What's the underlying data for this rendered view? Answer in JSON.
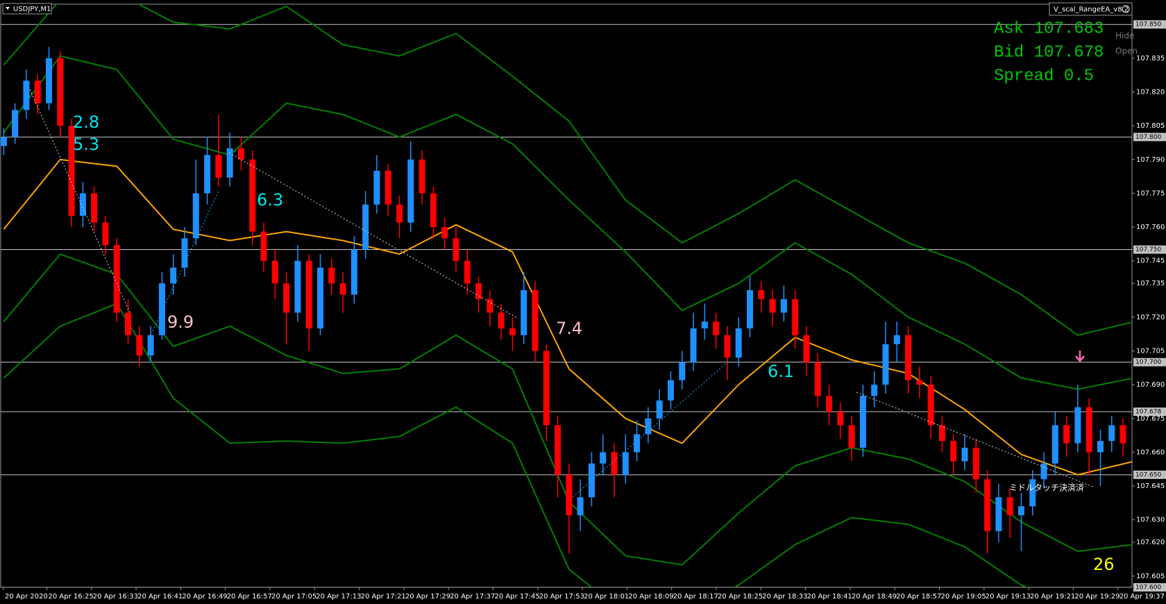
{
  "header": {
    "symbol": "USDJPY,M1",
    "ea": "V_scal_RangeEA_v8.2",
    "buttons": [
      "Hide",
      "Open"
    ]
  },
  "info": {
    "ask": "Ask 107.683",
    "bid": "Bid 107.678",
    "spread": "Spread 0.5"
  },
  "chart_data": {
    "type": "candlestick",
    "up_color": "#1e90ff",
    "down_color": "#ff0000",
    "ylim": [
      107.6,
      107.859
    ],
    "yticks": [
      107.835,
      {
        "value": 107.82,
        "label": "107.820"
      },
      107.805,
      {
        "value": 107.79,
        "label": "107.790"
      },
      107.775,
      {
        "value": 107.76,
        "label": "107.760"
      },
      107.745,
      107.735,
      {
        "value": 107.72,
        "label": "107.720"
      },
      107.705,
      {
        "value": 107.69,
        "label": "107.690"
      },
      107.675,
      {
        "value": 107.66,
        "label": "107.660"
      },
      107.645,
      {
        "value": 107.63,
        "label": "107.630"
      },
      {
        "value": 107.62,
        "label": "107.620"
      },
      107.605
    ],
    "levels": [
      {
        "value": 107.85,
        "label": "107.850"
      },
      {
        "value": 107.8,
        "label": "107.800"
      },
      {
        "value": 107.75,
        "label": "107.750"
      },
      {
        "value": 107.7,
        "label": "107.700"
      },
      107.678,
      {
        "value": 107.65,
        "label": "107.650"
      },
      {
        "value": 107.6,
        "label": "107.600"
      }
    ],
    "xticks": [
      "20 Apr 2020",
      "20 Apr 16:25",
      "20 Apr 16:33",
      "20 Apr 16:41",
      "20 Apr 16:49",
      "20 Apr 16:57",
      "20 Apr 17:05",
      "20 Apr 17:13",
      "20 Apr 17:21",
      "20 Apr 17:29",
      "20 Apr 17:37",
      "20 Apr 17:45",
      "20 Apr 17:53",
      "20 Apr 18:01",
      "20 Apr 18:09",
      "20 Apr 18:17",
      "20 Apr 18:25",
      "20 Apr 18:33",
      "20 Apr 18:41",
      "20 Apr 18:49",
      "20 Apr 18:57",
      "20 Apr 19:05",
      "20 Apr 19:13",
      "20 Apr 19:21",
      "20 Apr 19:29",
      "20 Apr 19:37"
    ],
    "ohlc": [
      [
        107.796,
        107.804,
        107.792,
        107.8
      ],
      [
        107.8,
        107.815,
        107.797,
        107.812
      ],
      [
        107.812,
        107.83,
        107.808,
        107.825
      ],
      [
        107.825,
        107.828,
        107.81,
        107.815
      ],
      [
        107.815,
        107.84,
        107.812,
        107.835
      ],
      [
        107.835,
        107.838,
        107.8,
        107.805
      ],
      [
        107.805,
        107.808,
        107.76,
        107.765
      ],
      [
        107.765,
        107.78,
        107.76,
        107.775
      ],
      [
        107.775,
        107.778,
        107.758,
        107.762
      ],
      [
        107.762,
        107.765,
        107.748,
        107.752
      ],
      [
        107.752,
        107.755,
        107.718,
        107.722
      ],
      [
        107.722,
        107.728,
        107.708,
        107.712
      ],
      [
        107.712,
        107.716,
        107.698,
        107.703
      ],
      [
        107.703,
        107.716,
        107.7,
        107.712
      ],
      [
        107.712,
        107.74,
        107.71,
        107.735
      ],
      [
        107.735,
        107.748,
        107.73,
        107.742
      ],
      [
        107.742,
        107.76,
        107.738,
        107.755
      ],
      [
        107.755,
        107.79,
        107.752,
        107.775
      ],
      [
        107.775,
        107.8,
        107.77,
        107.792
      ],
      [
        107.792,
        107.81,
        107.778,
        107.782
      ],
      [
        107.782,
        107.802,
        107.778,
        107.795
      ],
      [
        107.795,
        107.8,
        107.785,
        107.79
      ],
      [
        107.79,
        107.794,
        107.752,
        107.758
      ],
      [
        107.758,
        107.762,
        107.74,
        107.745
      ],
      [
        107.745,
        107.75,
        107.728,
        107.735
      ],
      [
        107.735,
        107.74,
        107.708,
        107.722
      ],
      [
        107.722,
        107.752,
        107.718,
        107.745
      ],
      [
        107.745,
        107.748,
        107.705,
        107.715
      ],
      [
        107.715,
        107.748,
        107.712,
        107.742
      ],
      [
        107.742,
        107.746,
        107.73,
        107.735
      ],
      [
        107.735,
        107.74,
        107.722,
        107.73
      ],
      [
        107.73,
        107.756,
        107.726,
        107.75
      ],
      [
        107.75,
        107.776,
        107.746,
        107.77
      ],
      [
        107.77,
        107.792,
        107.766,
        107.785
      ],
      [
        107.785,
        107.788,
        107.765,
        107.77
      ],
      [
        107.77,
        107.774,
        107.755,
        107.762
      ],
      [
        107.762,
        107.798,
        107.758,
        107.79
      ],
      [
        107.79,
        107.794,
        107.77,
        107.775
      ],
      [
        107.775,
        107.778,
        107.755,
        107.76
      ],
      [
        107.76,
        107.764,
        107.75,
        107.755
      ],
      [
        107.755,
        107.76,
        107.74,
        107.745
      ],
      [
        107.745,
        107.75,
        107.73,
        107.735
      ],
      [
        107.735,
        107.738,
        107.722,
        107.728
      ],
      [
        107.728,
        107.732,
        107.716,
        107.722
      ],
      [
        107.722,
        107.726,
        107.71,
        107.715
      ],
      [
        107.715,
        107.72,
        107.705,
        107.712
      ],
      [
        107.712,
        107.74,
        107.708,
        107.732
      ],
      [
        107.732,
        107.736,
        107.7,
        107.705
      ],
      [
        107.705,
        107.708,
        107.665,
        107.672
      ],
      [
        107.672,
        107.676,
        107.64,
        107.65
      ],
      [
        107.65,
        107.655,
        107.615,
        107.632
      ],
      [
        107.632,
        107.648,
        107.625,
        107.64
      ],
      [
        107.64,
        107.66,
        107.636,
        107.655
      ],
      [
        107.655,
        107.668,
        107.65,
        107.66
      ],
      [
        107.66,
        107.664,
        107.64,
        107.65
      ],
      [
        107.65,
        107.668,
        107.646,
        107.66
      ],
      [
        107.66,
        107.674,
        107.656,
        107.668
      ],
      [
        107.668,
        107.68,
        107.664,
        107.675
      ],
      [
        107.675,
        107.688,
        107.67,
        107.683
      ],
      [
        107.683,
        107.696,
        107.679,
        107.692
      ],
      [
        107.692,
        107.705,
        107.688,
        107.7
      ],
      [
        107.7,
        107.722,
        107.696,
        107.715
      ],
      [
        107.715,
        107.726,
        107.71,
        107.718
      ],
      [
        107.718,
        107.722,
        107.706,
        107.712
      ],
      [
        107.712,
        107.716,
        107.692,
        107.702
      ],
      [
        107.702,
        107.72,
        107.698,
        107.715
      ],
      [
        107.715,
        107.738,
        107.711,
        107.732
      ],
      [
        107.732,
        107.736,
        107.722,
        107.728
      ],
      [
        107.728,
        107.732,
        107.716,
        107.722
      ],
      [
        107.722,
        107.734,
        107.718,
        107.728
      ],
      [
        107.728,
        107.732,
        107.706,
        107.712
      ],
      [
        107.712,
        107.716,
        107.694,
        107.7
      ],
      [
        107.7,
        107.704,
        107.68,
        107.685
      ],
      [
        107.685,
        107.69,
        107.672,
        107.678
      ],
      [
        107.678,
        107.682,
        107.666,
        107.672
      ],
      [
        107.672,
        107.676,
        107.656,
        107.662
      ],
      [
        107.662,
        107.69,
        107.658,
        107.685
      ],
      [
        107.685,
        107.696,
        107.68,
        107.69
      ],
      [
        107.69,
        107.718,
        107.686,
        107.708
      ],
      [
        107.708,
        107.718,
        107.7,
        107.712
      ],
      [
        107.712,
        107.716,
        107.686,
        107.692
      ],
      [
        107.692,
        107.698,
        107.684,
        107.69
      ],
      [
        107.69,
        107.694,
        107.666,
        107.672
      ],
      [
        107.672,
        107.676,
        107.66,
        107.665
      ],
      [
        107.665,
        107.668,
        107.65,
        107.656
      ],
      [
        107.656,
        107.668,
        107.652,
        107.662
      ],
      [
        107.662,
        107.666,
        107.642,
        107.648
      ],
      [
        107.648,
        107.652,
        107.615,
        107.625
      ],
      [
        107.625,
        107.646,
        107.62,
        107.64
      ],
      [
        107.64,
        107.644,
        107.622,
        107.632
      ],
      [
        107.632,
        107.642,
        107.616,
        107.636
      ],
      [
        107.636,
        107.652,
        107.632,
        107.648
      ],
      [
        107.648,
        107.66,
        107.644,
        107.655
      ],
      [
        107.655,
        107.678,
        107.65,
        107.672
      ],
      [
        107.672,
        107.676,
        107.658,
        107.664
      ],
      [
        107.664,
        107.69,
        107.66,
        107.68
      ],
      [
        107.68,
        107.684,
        107.65,
        107.66
      ],
      [
        107.66,
        107.67,
        107.645,
        107.665
      ],
      [
        107.665,
        107.676,
        107.66,
        107.672
      ],
      [
        107.672,
        107.675,
        107.658,
        107.664
      ]
    ],
    "line_x": [
      0,
      5,
      10,
      15,
      20,
      25,
      30,
      35,
      40,
      45,
      50,
      55,
      60,
      65,
      70,
      75,
      80,
      85,
      90,
      95,
      100
    ],
    "series": [
      {
        "color": "#ffa500",
        "values": [
          107.759,
          107.79,
          107.787,
          107.759,
          107.754,
          107.758,
          107.754,
          107.748,
          107.761,
          107.749,
          107.697,
          107.675,
          107.664,
          107.69,
          107.711,
          107.701,
          107.695,
          107.679,
          107.659,
          107.65,
          107.656
        ]
      },
      {
        "color": "#008000",
        "values": [
          107.832,
          107.861,
          107.864,
          107.851,
          107.848,
          107.858,
          107.841,
          107.836,
          107.846,
          107.827,
          107.807,
          107.772,
          107.753,
          107.766,
          107.781,
          107.767,
          107.753,
          107.744,
          107.73,
          107.712,
          107.718
        ]
      },
      {
        "color": "#008000",
        "values": [
          107.802,
          107.836,
          107.83,
          107.799,
          107.792,
          107.815,
          107.81,
          107.8,
          107.81,
          107.797,
          107.772,
          107.749,
          107.723,
          107.735,
          107.753,
          107.739,
          107.72,
          107.708,
          107.693,
          107.688,
          107.693
        ]
      },
      {
        "color": "#008000",
        "values": [
          107.718,
          107.748,
          107.739,
          107.707,
          107.716,
          107.703,
          107.695,
          107.697,
          107.712,
          107.697,
          107.638,
          107.614,
          107.61,
          107.633,
          107.654,
          107.662,
          107.657,
          107.647,
          107.629,
          107.616,
          107.619
        ]
      },
      {
        "color": "#008000",
        "values": [
          107.693,
          107.716,
          107.726,
          107.684,
          107.664,
          107.665,
          107.664,
          107.667,
          107.68,
          107.664,
          107.608,
          107.588,
          107.588,
          107.601,
          107.619,
          107.631,
          107.628,
          107.618,
          107.601,
          107.591,
          107.598
        ]
      }
    ],
    "annotations": [
      {
        "text": 2.8,
        "color": "#00e5ee"
      },
      {
        "text": 5.3,
        "color": "#00e5ee"
      },
      {
        "text": 6.3,
        "color": "#00e5ee"
      },
      {
        "text": 9.9,
        "color": "#ffc0cb"
      },
      {
        "text": 7.4,
        "color": "#ffc0cb"
      },
      {
        "text": 6.1,
        "color": "#00e5ee"
      },
      {
        "text": 26,
        "color": "#ffff00"
      },
      {
        "text": "ミドルタッチ決済済",
        "color": "#ffffff"
      }
    ]
  }
}
